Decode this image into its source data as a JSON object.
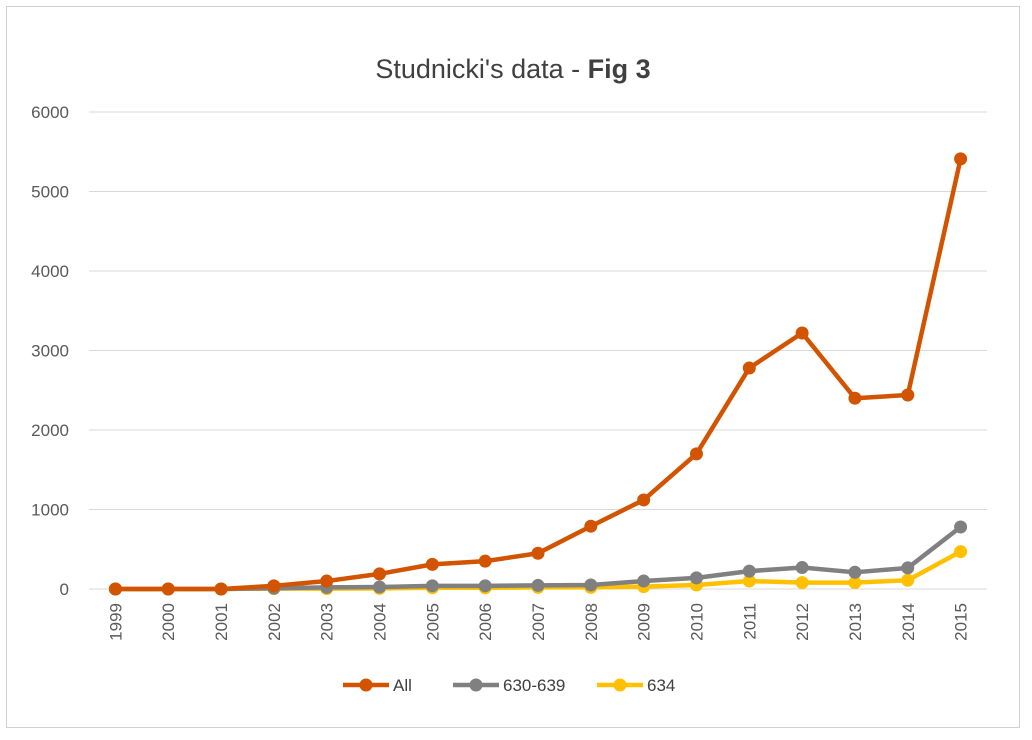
{
  "chart_data": {
    "type": "line",
    "title": "Studnicki's data - ",
    "title_bold": "Fig 3",
    "xlabel": "",
    "ylabel": "",
    "x": [
      "1999",
      "2000",
      "2001",
      "2002",
      "2003",
      "2004",
      "2005",
      "2006",
      "2007",
      "2008",
      "2009",
      "2010",
      "2011",
      "2012",
      "2013",
      "2014",
      "2015"
    ],
    "ylim": [
      0,
      6000
    ],
    "yticks": [
      "0",
      "1000",
      "2000",
      "3000",
      "4000",
      "5000",
      "6000"
    ],
    "grid": true,
    "legend_position": "bottom",
    "series": [
      {
        "name": "All",
        "color": "#d35400",
        "values": [
          0,
          0,
          0,
          40,
          100,
          190,
          310,
          350,
          450,
          790,
          1120,
          1700,
          2780,
          3220,
          2400,
          2440,
          5410
        ]
      },
      {
        "name": "630-639",
        "color": "#808080",
        "values": [
          0,
          0,
          0,
          10,
          20,
          25,
          40,
          40,
          45,
          50,
          100,
          140,
          225,
          270,
          210,
          265,
          780
        ]
      },
      {
        "name": "634",
        "color": "#ffc000",
        "values": [
          0,
          0,
          0,
          5,
          5,
          8,
          15,
          15,
          20,
          20,
          30,
          50,
          100,
          80,
          80,
          110,
          470
        ]
      }
    ]
  }
}
